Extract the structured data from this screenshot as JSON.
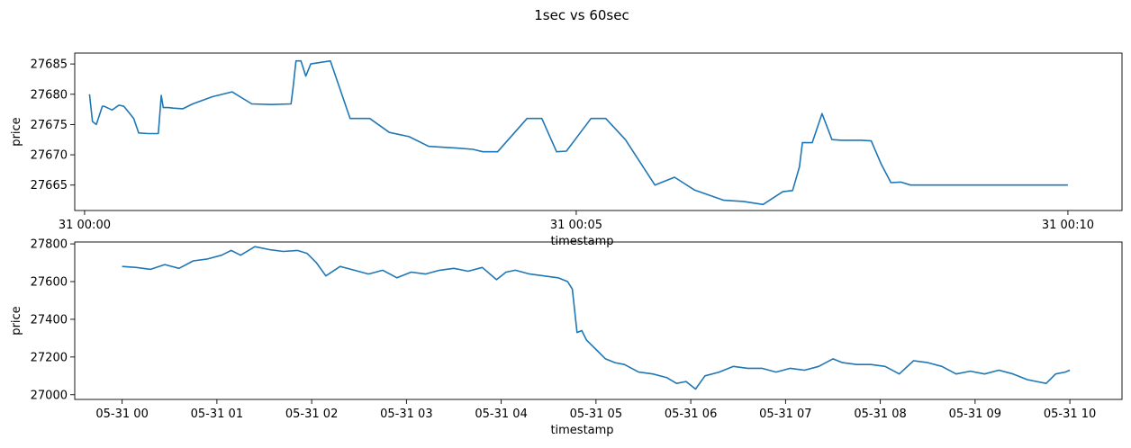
{
  "title": "1sec vs 60sec",
  "chart_data": [
    {
      "type": "line",
      "xlabel": "timestamp",
      "ylabel": "price",
      "xlim": [
        -0.1,
        10.55
      ],
      "ylim": [
        27660.8,
        27686.8
      ],
      "xticks": [
        0,
        5,
        10
      ],
      "xtick_labels": [
        "31 00:00",
        "31 00:05",
        "31 00:10"
      ],
      "yticks": [
        27665,
        27670,
        27675,
        27680,
        27685
      ],
      "ytick_labels": [
        "27665",
        "27670",
        "27675",
        "27680",
        "27685"
      ],
      "grid": false,
      "color": "#1f77b4",
      "series": [
        {
          "x": [
            0.05,
            0.08,
            0.12,
            0.18,
            0.2,
            0.28,
            0.35,
            0.4,
            0.45,
            0.5,
            0.55,
            0.65,
            0.75,
            0.78,
            0.8,
            0.85,
            0.9,
            1.0,
            1.1,
            1.3,
            1.5,
            1.7,
            1.9,
            2.1,
            2.12,
            2.15,
            2.2,
            2.25,
            2.3,
            2.5,
            2.7,
            2.9,
            3.1,
            3.3,
            3.5,
            3.8,
            3.95,
            4.05,
            4.2,
            4.5,
            4.65,
            4.8,
            4.9,
            5.15,
            5.3,
            5.5,
            5.8,
            6.0,
            6.2,
            6.5,
            6.7,
            6.9,
            7.1,
            7.2,
            7.27,
            7.3,
            7.35,
            7.4,
            7.5,
            7.6,
            7.7,
            7.75,
            7.8,
            7.85,
            7.9,
            8.0,
            8.1,
            8.2,
            8.3,
            8.4,
            8.5,
            8.6,
            8.65,
            8.7,
            8.8,
            8.9,
            9.1,
            9.2,
            9.3,
            9.5,
            9.7,
            9.8,
            9.85,
            9.9,
            9.95,
            10.0
          ],
          "y": [
            27680,
            27675.5,
            27675,
            27678,
            27678,
            27677.4,
            27678.2,
            27678,
            27677,
            27676,
            27673.6,
            27673.5,
            27673.5,
            27679.8,
            27677.8,
            27677.8,
            27677.7,
            27677.6,
            27678.4,
            27679.6,
            27680.4,
            27678.4,
            27678.3,
            27678.4,
            27681,
            27685.5,
            27685.5,
            27683,
            27685,
            27685.5,
            27676,
            27676,
            27673.7,
            27673,
            27671.4,
            27671.1,
            27670.9,
            27670.5,
            27670.5,
            27676,
            27676,
            27670.5,
            27670.6,
            27676,
            27676,
            27672.5,
            27665,
            27666.3,
            27664.2,
            27662.5,
            27662.3,
            27661.8,
            27663.9,
            27664.1,
            27668,
            27672,
            27672,
            27672,
            27676.8,
            27672.5,
            27672.4,
            27672.4,
            27672.4,
            27672.4,
            27672.4,
            27672.3,
            27668.5,
            27665.4,
            27665.5,
            27665,
            27665,
            27665,
            27665,
            27665,
            27665,
            27665,
            27665,
            27665,
            27665,
            27665,
            27665,
            27665,
            27665,
            27665,
            27665,
            27665
          ]
        }
      ]
    },
    {
      "type": "line",
      "xlabel": "timestamp",
      "ylabel": "price",
      "xlim": [
        -0.5,
        10.55
      ],
      "ylim": [
        26975,
        27810
      ],
      "xticks": [
        0,
        1,
        2,
        3,
        4,
        5,
        6,
        7,
        8,
        9,
        10
      ],
      "xtick_labels": [
        "05-31 00",
        "05-31 01",
        "05-31 02",
        "05-31 03",
        "05-31 04",
        "05-31 05",
        "05-31 06",
        "05-31 07",
        "05-31 08",
        "05-31 09",
        "05-31 10"
      ],
      "yticks": [
        27000,
        27200,
        27400,
        27600,
        27800
      ],
      "ytick_labels": [
        "27000",
        "27200",
        "27400",
        "27600",
        "27800"
      ],
      "grid": false,
      "color": "#1f77b4",
      "series": [
        {
          "x": [
            0,
            0.15,
            0.3,
            0.45,
            0.6,
            0.75,
            0.9,
            1.05,
            1.15,
            1.25,
            1.4,
            1.55,
            1.7,
            1.85,
            1.95,
            2.05,
            2.15,
            2.3,
            2.45,
            2.6,
            2.75,
            2.9,
            3.05,
            3.2,
            3.35,
            3.5,
            3.65,
            3.8,
            3.95,
            4.05,
            4.15,
            4.3,
            4.45,
            4.6,
            4.7,
            4.75,
            4.8,
            4.85,
            4.9,
            5.0,
            5.1,
            5.2,
            5.3,
            5.45,
            5.6,
            5.75,
            5.85,
            5.95,
            6.05,
            6.15,
            6.3,
            6.45,
            6.6,
            6.75,
            6.9,
            7.05,
            7.2,
            7.35,
            7.5,
            7.6,
            7.75,
            7.9,
            8.05,
            8.2,
            8.35,
            8.5,
            8.65,
            8.8,
            8.95,
            9.1,
            9.25,
            9.4,
            9.55,
            9.65,
            9.75,
            9.85,
            9.95,
            10.0
          ],
          "y": [
            27680,
            27675,
            27665,
            27690,
            27670,
            27710,
            27720,
            27740,
            27765,
            27740,
            27785,
            27770,
            27760,
            27765,
            27750,
            27700,
            27630,
            27680,
            27660,
            27640,
            27660,
            27620,
            27650,
            27640,
            27660,
            27670,
            27655,
            27675,
            27610,
            27650,
            27660,
            27640,
            27630,
            27620,
            27600,
            27560,
            27330,
            27340,
            27290,
            27240,
            27190,
            27170,
            27160,
            27120,
            27110,
            27090,
            27060,
            27070,
            27030,
            27100,
            27120,
            27150,
            27140,
            27140,
            27120,
            27140,
            27130,
            27150,
            27190,
            27170,
            27160,
            27160,
            27150,
            27110,
            27180,
            27170,
            27150,
            27110,
            27125,
            27110,
            27130,
            27110,
            27080,
            27070,
            27060,
            27110,
            27120,
            27130
          ]
        }
      ]
    }
  ]
}
